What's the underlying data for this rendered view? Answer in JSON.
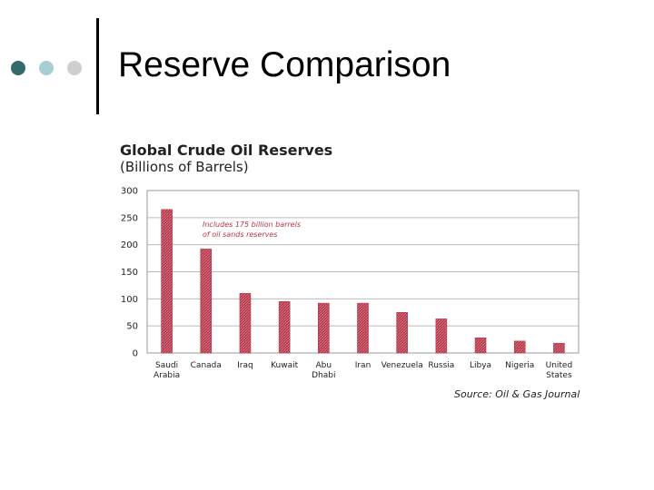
{
  "slide": {
    "title": "Reserve Comparison",
    "bullet_colors": [
      "#336b6b",
      "#a7cfd3",
      "#cfcfcf"
    ]
  },
  "chart_data": {
    "type": "bar",
    "title": "Global Crude Oil Reserves",
    "subtitle": "(Billions of Barrels)",
    "categories": [
      [
        "Saudi",
        "Arabia"
      ],
      [
        "Canada"
      ],
      [
        "Iraq"
      ],
      [
        "Kuwait"
      ],
      [
        "Abu",
        "Dhabi"
      ],
      [
        "Iran"
      ],
      [
        "Venezuela"
      ],
      [
        "Russia"
      ],
      [
        "Libya"
      ],
      [
        "Nigeria"
      ],
      [
        "United",
        "States"
      ]
    ],
    "values": [
      265,
      192,
      110,
      95,
      92,
      92,
      75,
      63,
      28,
      22,
      18
    ],
    "ylim": [
      0,
      300
    ],
    "yticks": [
      0,
      50,
      100,
      150,
      200,
      250,
      300
    ],
    "grid": true,
    "bar_color": "#b5384a",
    "annotation": [
      "Includes 175 billion barrels",
      "of oil sands reserves"
    ],
    "source": "Source: Oil & Gas Journal"
  }
}
